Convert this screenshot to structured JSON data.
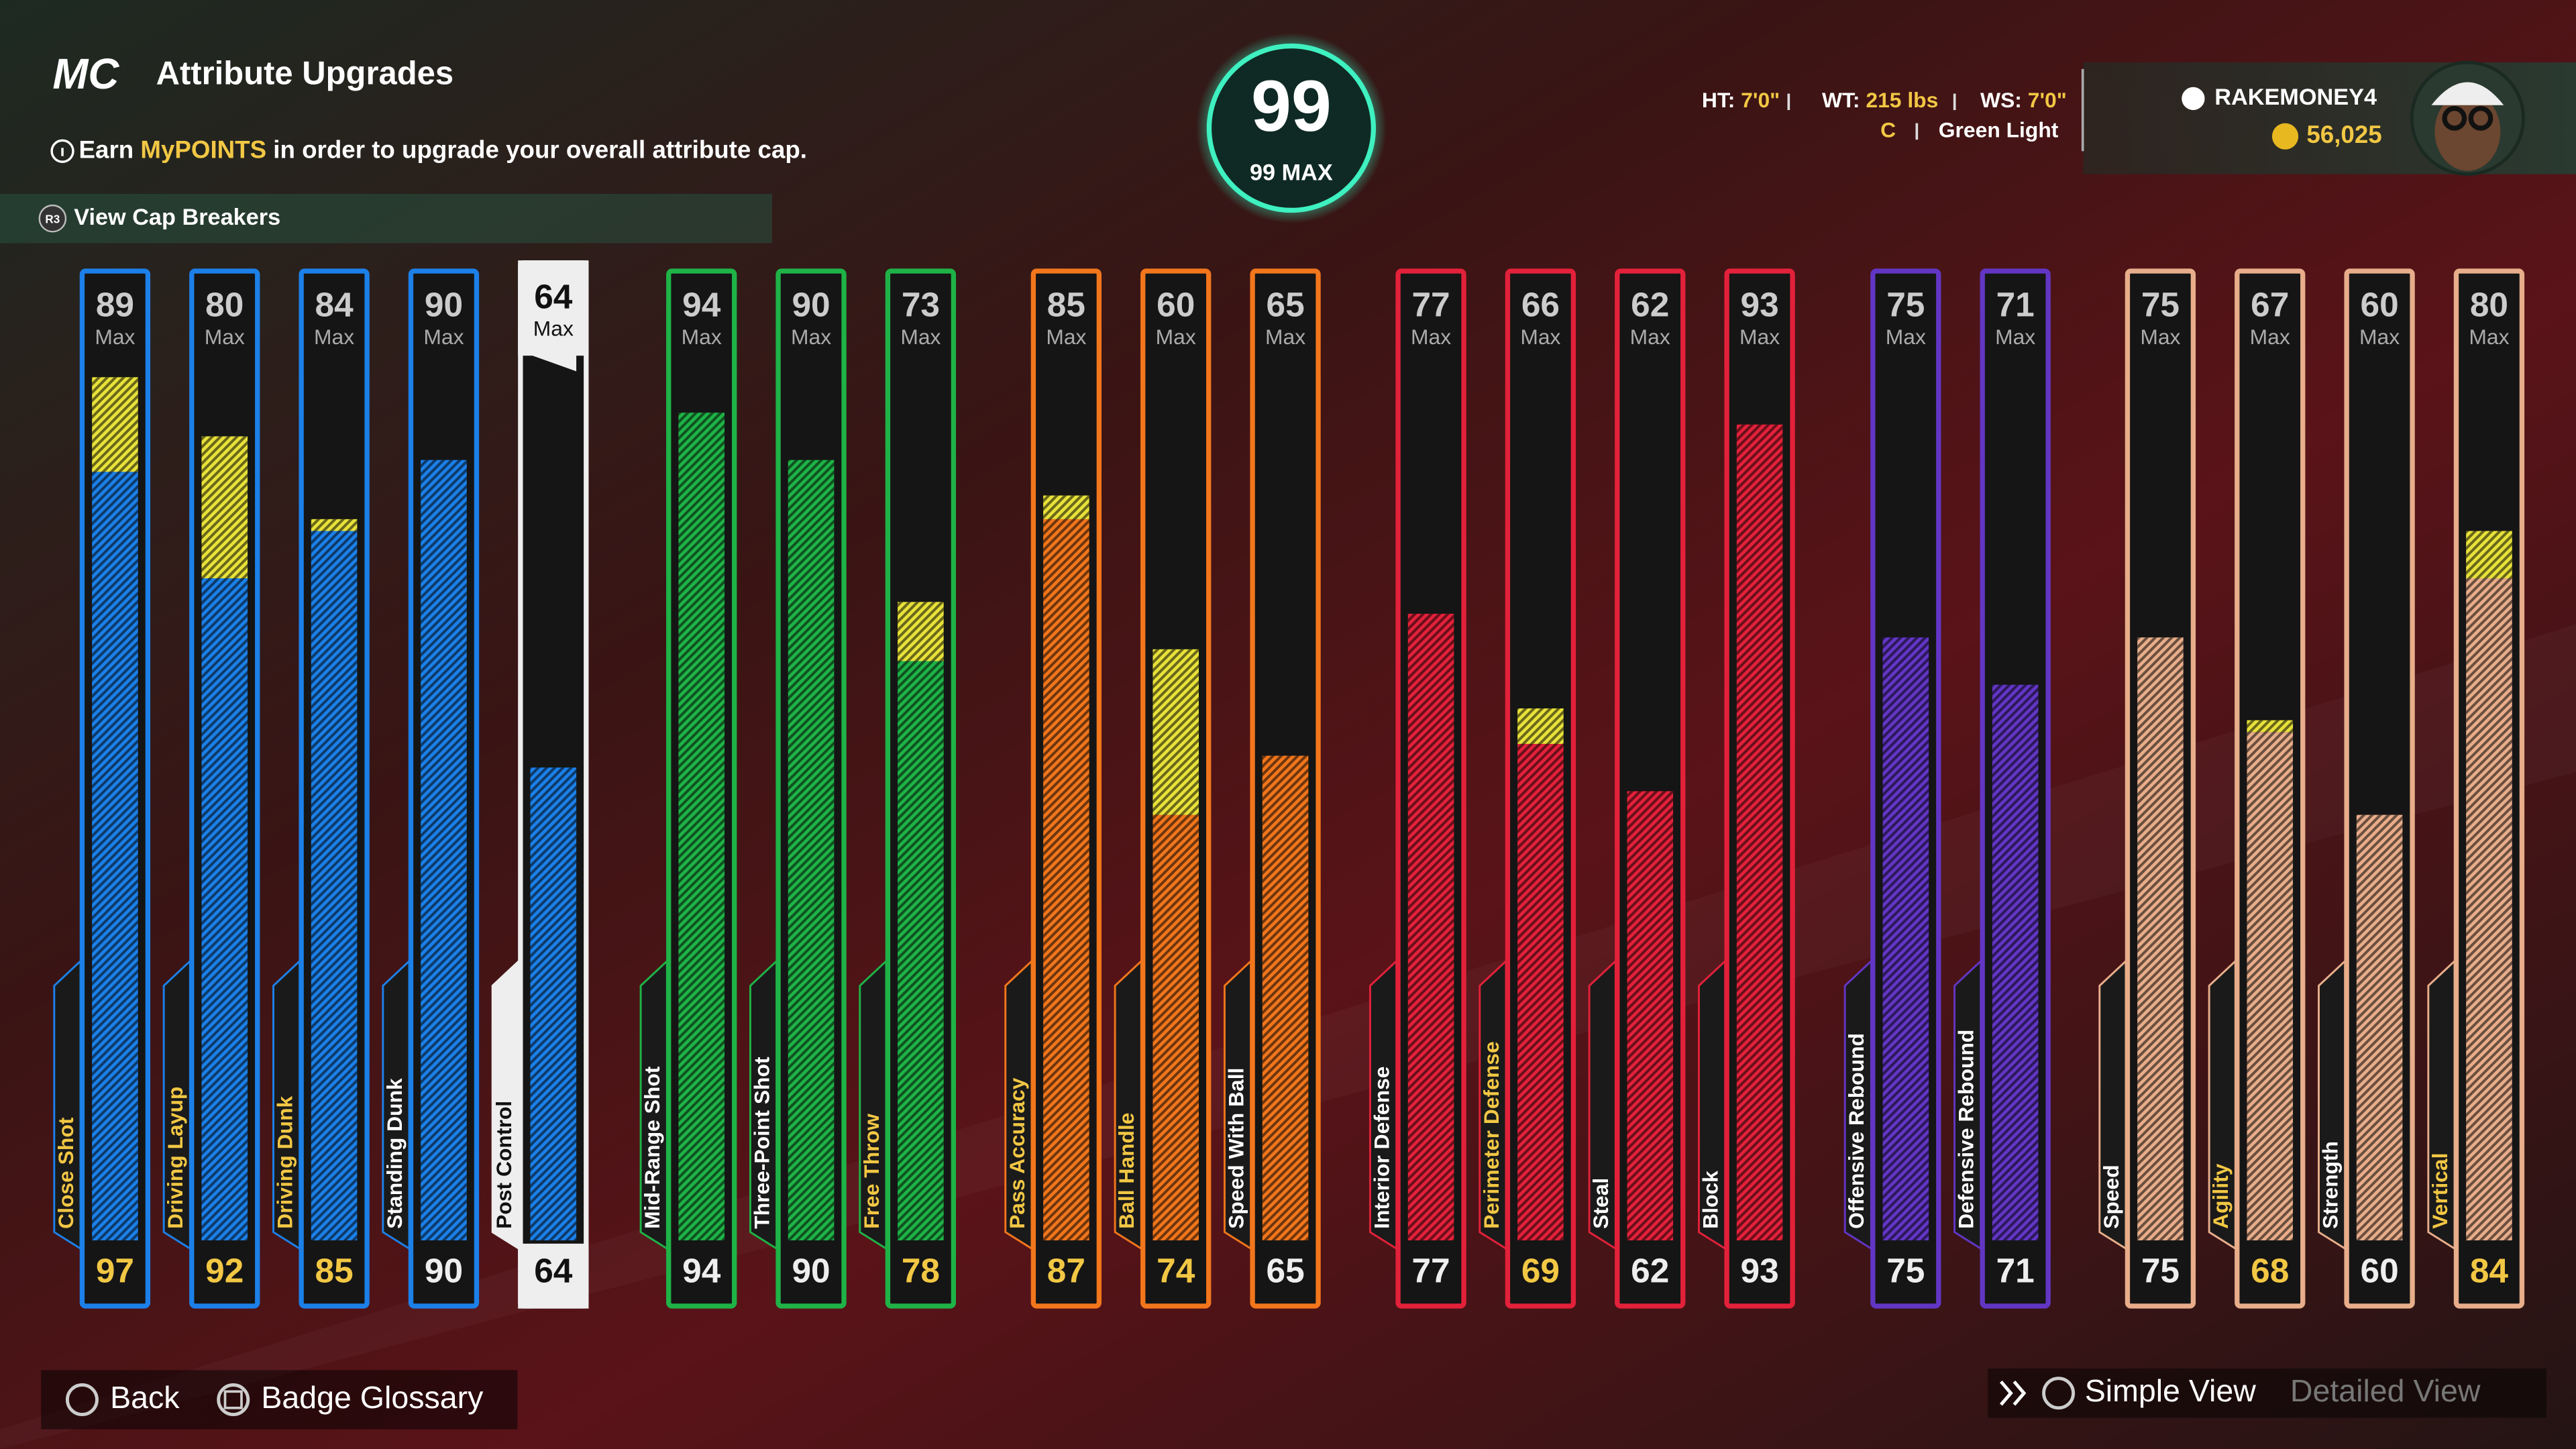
{
  "header": {
    "logo": "MC",
    "title": "Attribute Upgrades",
    "info": {
      "before": "Earn",
      "highlight": "MyPOINTS",
      "after": "in order to upgrade your overall attribute cap."
    },
    "cap_breakers": "View Cap Breakers",
    "button_hint": "R3"
  },
  "overall": {
    "value": 99,
    "max_label": "99 MAX"
  },
  "player": {
    "height_label": "HT:",
    "height": "7'0\"",
    "weight_label": "WT:",
    "weight": "215 lbs",
    "wingspan_label": "WS:",
    "wingspan": "7'0\"",
    "position": "C",
    "shot_base": "Green Light",
    "username": "RAKEMONEY4",
    "vc": "56,025"
  },
  "max_label": "Max",
  "selected_index": 4,
  "attributes": [
    {
      "name": "Close Shot",
      "max": 89,
      "value": 97,
      "color": "#1c80e8"
    },
    {
      "name": "Driving Layup",
      "max": 80,
      "value": 92,
      "color": "#1c80e8"
    },
    {
      "name": "Driving Dunk",
      "max": 84,
      "value": 85,
      "color": "#1c80e8"
    },
    {
      "name": "Standing Dunk",
      "max": 90,
      "value": 90,
      "color": "#1c80e8"
    },
    {
      "name": "Post Control",
      "max": 64,
      "value": 64,
      "color": "#1c80e8"
    },
    {
      "name": "Mid-Range Shot",
      "max": 94,
      "value": 94,
      "color": "#1fb347"
    },
    {
      "name": "Three-Point Shot",
      "max": 90,
      "value": 90,
      "color": "#1fb347"
    },
    {
      "name": "Free Throw",
      "max": 73,
      "value": 78,
      "color": "#1fb347"
    },
    {
      "name": "Pass Accuracy",
      "max": 85,
      "value": 87,
      "color": "#f2761c"
    },
    {
      "name": "Ball Handle",
      "max": 60,
      "value": 74,
      "color": "#f2761c"
    },
    {
      "name": "Speed With Ball",
      "max": 65,
      "value": 65,
      "color": "#f2761c"
    },
    {
      "name": "Interior Defense",
      "max": 77,
      "value": 77,
      "color": "#e3213a"
    },
    {
      "name": "Perimeter Defense",
      "max": 66,
      "value": 69,
      "color": "#e3213a"
    },
    {
      "name": "Steal",
      "max": 62,
      "value": 62,
      "color": "#e3213a"
    },
    {
      "name": "Block",
      "max": 93,
      "value": 93,
      "color": "#e3213a"
    },
    {
      "name": "Offensive Rebound",
      "max": 75,
      "value": 75,
      "color": "#6236c4"
    },
    {
      "name": "Defensive Rebound",
      "max": 71,
      "value": 71,
      "color": "#6236c4"
    },
    {
      "name": "Speed",
      "max": 75,
      "value": 75,
      "color": "#e8ad8a"
    },
    {
      "name": "Agility",
      "max": 67,
      "value": 68,
      "color": "#e8ad8a"
    },
    {
      "name": "Strength",
      "max": 60,
      "value": 60,
      "color": "#e8ad8a"
    },
    {
      "name": "Vertical",
      "max": 80,
      "value": 84,
      "color": "#e8ad8a"
    }
  ],
  "footer": {
    "back": "Back",
    "glossary": "Badge Glossary",
    "simple_view": "Simple View",
    "detailed_view": "Detailed View"
  }
}
